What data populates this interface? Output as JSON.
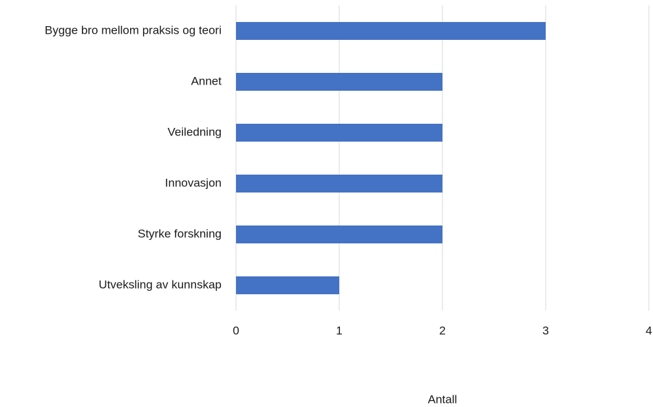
{
  "chart_data": {
    "type": "bar",
    "orientation": "horizontal",
    "categories": [
      "Bygge bro mellom praksis og teori",
      "Annet",
      "Veiledning",
      "Innovasjon",
      "Styrke forskning",
      "Utveksling av kunnskap"
    ],
    "values": [
      3,
      2,
      2,
      2,
      2,
      1
    ],
    "color": "#4472c4",
    "xlabel": "Antall",
    "xlim": [
      0,
      4
    ],
    "xticks": [
      0,
      1,
      2,
      3,
      4
    ],
    "grid": true
  }
}
